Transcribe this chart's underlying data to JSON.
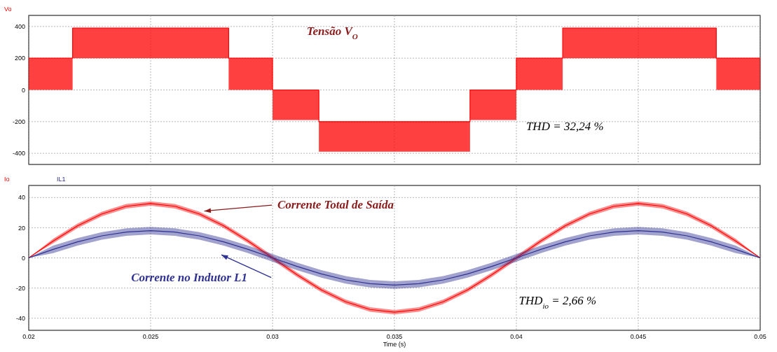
{
  "chart_data": [
    {
      "type": "line",
      "xlim": [
        0.02,
        0.05
      ],
      "xticks": [
        0.02,
        0.025,
        0.03,
        0.035,
        0.04,
        0.045,
        0.05
      ],
      "ylim": [
        -470,
        470
      ],
      "yticks": [
        -400,
        -200,
        0,
        200,
        400
      ],
      "grid": true,
      "legend": "top left",
      "tick_labels": "y",
      "series": [
        {
          "name": "Vo",
          "color": "#ff0000",
          "x": [
            0.02,
            0.0218,
            0.0218,
            0.0282,
            0.0282,
            0.03,
            0.03,
            0.0319,
            0.0319,
            0.0381,
            0.0381,
            0.04,
            0.04,
            0.0419,
            0.0419,
            0.0482,
            0.0482,
            0.05
          ],
          "values": [
            200,
            200,
            390,
            390,
            200,
            200,
            0,
            0,
            -200,
            -200,
            0,
            0,
            200,
            200,
            390,
            390,
            200,
            200
          ],
          "lower": [
            0,
            0,
            200,
            200,
            0,
            0,
            -190,
            -190,
            -390,
            -390,
            -190,
            -190,
            0,
            0,
            200,
            200,
            0,
            0
          ],
          "upper": [
            200,
            200,
            390,
            390,
            200,
            200,
            0,
            0,
            -200,
            -200,
            0,
            0,
            200,
            200,
            390,
            390,
            200,
            200
          ]
        }
      ],
      "annotations": [
        "Tensão V$_{O}$",
        "THD = 32,24 %"
      ]
    },
    {
      "type": "line",
      "xlabel": "Time (s)",
      "xlim": [
        0.02,
        0.05
      ],
      "xticks": [
        0.02,
        0.025,
        0.03,
        0.035,
        0.04,
        0.045,
        0.05
      ],
      "ylim": [
        -48,
        48
      ],
      "yticks": [
        -40,
        -20,
        0,
        20,
        40
      ],
      "grid": true,
      "legend": "top left",
      "x": [
        0.02,
        0.021,
        0.022,
        0.023,
        0.024,
        0.025,
        0.026,
        0.027,
        0.028,
        0.029,
        0.03,
        0.031,
        0.032,
        0.033,
        0.034,
        0.035,
        0.036,
        0.037,
        0.038,
        0.039,
        0.04,
        0.041,
        0.042,
        0.043,
        0.044,
        0.045,
        0.046,
        0.047,
        0.048,
        0.049,
        0.05
      ],
      "series": [
        {
          "name": "Io",
          "color": "#ff0000",
          "values": [
            0,
            11.1,
            21.2,
            29.1,
            34.2,
            36,
            34.2,
            29.1,
            21.2,
            11.1,
            0,
            -11.1,
            -21.2,
            -29.1,
            -34.2,
            -36,
            -34.2,
            -29.1,
            -21.2,
            -11.1,
            0,
            11.1,
            21.2,
            29.1,
            34.2,
            36,
            34.2,
            29.1,
            21.2,
            11.1,
            0
          ],
          "lower": [
            0,
            9.6,
            19.7,
            27.6,
            32.7,
            34.5,
            32.7,
            27.6,
            19.7,
            9.6,
            -1.5,
            -12.6,
            -22.7,
            -30.6,
            -35.7,
            -37.5,
            -35.7,
            -30.6,
            -22.7,
            -12.6,
            -1.5,
            9.6,
            19.7,
            27.6,
            32.7,
            34.5,
            32.7,
            27.6,
            19.7,
            9.6,
            0
          ],
          "upper": [
            0,
            12.6,
            22.7,
            30.6,
            35.7,
            37.5,
            35.7,
            30.6,
            22.7,
            12.6,
            1.5,
            -9.6,
            -19.7,
            -27.6,
            -32.7,
            -34.5,
            -32.7,
            -27.6,
            -19.7,
            -9.6,
            1.5,
            12.6,
            22.7,
            30.6,
            35.7,
            37.5,
            35.7,
            30.6,
            22.7,
            12.6,
            0
          ]
        },
        {
          "name": "IL1",
          "color": "#2e3192",
          "values": [
            0,
            5.6,
            10.6,
            14.6,
            17.1,
            18,
            17.1,
            14.6,
            10.6,
            5.6,
            0,
            -5.6,
            -10.6,
            -14.6,
            -17.1,
            -18,
            -17.1,
            -14.6,
            -10.6,
            -5.6,
            0,
            5.6,
            10.6,
            14.6,
            17.1,
            18,
            17.1,
            14.6,
            10.6,
            5.6,
            0
          ],
          "lower": [
            0,
            3.1,
            8.1,
            12.1,
            14.6,
            15.5,
            14.6,
            12.1,
            8.1,
            3.1,
            -2.5,
            -8.1,
            -13.1,
            -17.1,
            -19.6,
            -20.5,
            -19.6,
            -17.1,
            -13.1,
            -8.1,
            -2.5,
            3.1,
            8.1,
            12.1,
            14.6,
            15.5,
            14.6,
            12.1,
            8.1,
            3.1,
            0
          ],
          "upper": [
            0,
            8.1,
            13.1,
            17.1,
            19.6,
            20.5,
            19.6,
            17.1,
            13.1,
            8.1,
            2.5,
            -3.1,
            -8.1,
            -12.1,
            -14.6,
            -15.5,
            -14.6,
            -12.1,
            -8.1,
            -3.1,
            2.5,
            8.1,
            13.1,
            17.1,
            19.6,
            20.5,
            19.6,
            17.1,
            13.1,
            8.1,
            0
          ]
        }
      ],
      "annotations": [
        {
          "text": "Corrente Total de Saída",
          "x": 0.0272,
          "y": 31
        },
        {
          "text": "Corrente no Indutor L1",
          "x": 0.0279,
          "y": 2
        },
        "THD$_{io}$ = 2,66 %"
      ]
    }
  ]
}
